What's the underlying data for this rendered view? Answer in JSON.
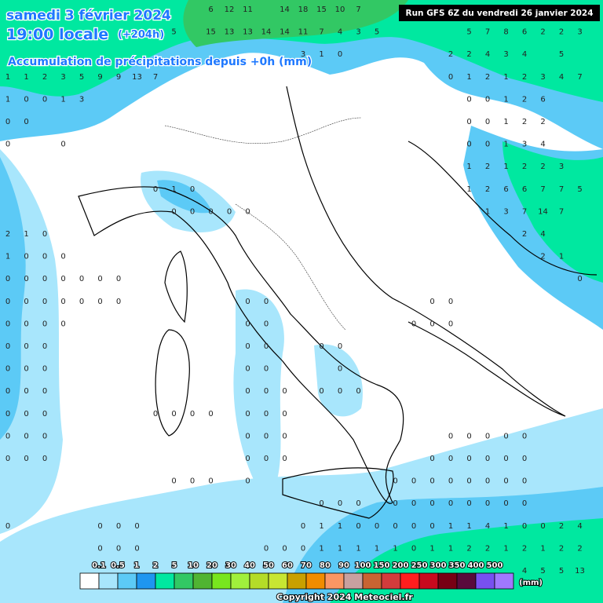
{
  "header": {
    "date": "samedi 3 février 2024",
    "time": "19:00 locale",
    "lead": "(+204h)",
    "subtitle": "Accumulation de précipitations depuis +0h (mm)",
    "run": "Run GFS 6Z du vendredi 26 janvier 2024"
  },
  "grid_rows": [
    [
      null,
      null,
      null,
      null,
      null,
      null,
      null,
      null,
      null,
      null,
      null,
      6,
      12,
      11,
      null,
      14,
      18,
      15,
      10,
      7
    ],
    [
      null,
      null,
      null,
      null,
      null,
      null,
      null,
      null,
      null,
      5,
      null,
      15,
      13,
      13,
      14,
      14,
      11,
      7,
      4,
      3,
      5,
      null,
      null,
      null,
      null,
      5,
      7,
      8,
      6,
      2,
      2,
      3
    ],
    [
      null,
      null,
      null,
      null,
      null,
      null,
      null,
      null,
      null,
      null,
      null,
      null,
      null,
      null,
      null,
      null,
      3,
      1,
      0,
      null,
      null,
      null,
      null,
      null,
      2,
      2,
      4,
      3,
      4,
      null,
      5
    ],
    [
      1,
      1,
      2,
      3,
      5,
      9,
      9,
      13,
      7,
      null,
      null,
      null,
      null,
      null,
      null,
      null,
      null,
      null,
      null,
      null,
      null,
      null,
      null,
      null,
      0,
      1,
      2,
      1,
      2,
      3,
      4,
      7
    ],
    [
      1,
      0,
      0,
      1,
      3,
      null,
      null,
      null,
      null,
      null,
      null,
      null,
      null,
      null,
      null,
      null,
      null,
      null,
      null,
      null,
      null,
      null,
      null,
      null,
      null,
      0,
      0,
      1,
      2,
      6
    ],
    [
      0,
      0,
      null,
      null,
      null,
      null,
      null,
      null,
      null,
      null,
      null,
      null,
      null,
      null,
      null,
      null,
      null,
      null,
      null,
      null,
      null,
      null,
      null,
      null,
      null,
      0,
      0,
      1,
      2,
      2
    ],
    [
      0,
      null,
      null,
      0,
      null,
      null,
      null,
      null,
      null,
      null,
      null,
      null,
      null,
      null,
      null,
      null,
      null,
      null,
      null,
      null,
      null,
      null,
      null,
      null,
      null,
      0,
      0,
      1,
      3,
      4
    ],
    [
      null,
      null,
      null,
      null,
      null,
      null,
      null,
      null,
      null,
      null,
      null,
      null,
      null,
      null,
      null,
      null,
      null,
      null,
      null,
      null,
      null,
      null,
      null,
      null,
      null,
      1,
      2,
      1,
      2,
      2,
      3
    ],
    [
      null,
      null,
      null,
      null,
      null,
      null,
      null,
      null,
      0,
      1,
      0,
      null,
      null,
      null,
      null,
      null,
      null,
      null,
      null,
      null,
      null,
      null,
      null,
      null,
      null,
      1,
      2,
      6,
      6,
      7,
      7,
      5
    ],
    [
      null,
      null,
      null,
      null,
      null,
      null,
      null,
      null,
      null,
      0,
      0,
      0,
      0,
      0,
      null,
      null,
      null,
      null,
      null,
      null,
      null,
      null,
      null,
      null,
      null,
      null,
      1,
      3,
      7,
      14,
      7
    ],
    [
      2,
      1,
      0,
      null,
      null,
      null,
      null,
      null,
      null,
      null,
      null,
      null,
      null,
      null,
      null,
      null,
      null,
      null,
      null,
      null,
      null,
      null,
      null,
      null,
      null,
      null,
      null,
      null,
      2,
      4
    ],
    [
      1,
      0,
      0,
      0,
      null,
      null,
      null,
      null,
      null,
      null,
      null,
      null,
      null,
      null,
      null,
      null,
      null,
      null,
      null,
      null,
      null,
      null,
      null,
      null,
      null,
      null,
      null,
      null,
      null,
      2,
      1
    ],
    [
      0,
      0,
      0,
      0,
      0,
      0,
      0,
      null,
      null,
      null,
      null,
      null,
      null,
      null,
      null,
      null,
      null,
      null,
      null,
      null,
      null,
      null,
      null,
      null,
      null,
      null,
      null,
      null,
      null,
      null,
      null,
      0
    ],
    [
      0,
      0,
      0,
      0,
      0,
      0,
      0,
      null,
      null,
      null,
      null,
      null,
      null,
      0,
      0,
      null,
      null,
      null,
      null,
      null,
      null,
      null,
      null,
      0,
      0
    ],
    [
      0,
      0,
      0,
      0,
      null,
      null,
      null,
      null,
      null,
      null,
      null,
      null,
      null,
      0,
      0,
      null,
      null,
      null,
      null,
      null,
      null,
      null,
      0,
      0,
      0
    ],
    [
      0,
      0,
      0,
      null,
      null,
      null,
      null,
      null,
      null,
      null,
      null,
      null,
      null,
      0,
      0,
      null,
      null,
      0,
      0
    ],
    [
      0,
      0,
      0,
      null,
      null,
      null,
      null,
      null,
      null,
      null,
      null,
      null,
      null,
      0,
      0,
      null,
      null,
      null,
      0
    ],
    [
      0,
      0,
      0,
      null,
      null,
      null,
      null,
      null,
      null,
      null,
      null,
      null,
      null,
      0,
      0,
      0,
      null,
      0,
      0,
      0
    ],
    [
      0,
      0,
      0,
      null,
      null,
      null,
      null,
      null,
      0,
      0,
      0,
      0,
      null,
      0,
      0,
      0
    ],
    [
      0,
      0,
      0,
      null,
      null,
      null,
      null,
      null,
      null,
      null,
      null,
      null,
      null,
      0,
      0,
      0,
      null,
      null,
      null,
      null,
      null,
      null,
      null,
      null,
      0,
      0,
      0,
      0,
      0
    ],
    [
      0,
      0,
      0,
      null,
      null,
      null,
      null,
      null,
      null,
      null,
      null,
      null,
      null,
      0,
      0,
      0,
      null,
      null,
      null,
      null,
      null,
      null,
      null,
      0,
      0,
      0,
      0,
      0,
      0
    ],
    [
      null,
      null,
      null,
      null,
      null,
      null,
      null,
      null,
      null,
      0,
      0,
      0,
      null,
      0,
      null,
      null,
      null,
      null,
      null,
      null,
      null,
      0,
      0,
      0,
      0,
      0,
      0,
      0,
      0
    ],
    [
      null,
      null,
      null,
      null,
      null,
      null,
      null,
      null,
      null,
      null,
      null,
      null,
      null,
      null,
      null,
      null,
      null,
      0,
      0,
      0,
      null,
      0,
      0,
      0,
      0,
      0,
      0,
      0,
      0
    ],
    [
      0,
      null,
      null,
      null,
      null,
      0,
      0,
      0,
      null,
      null,
      null,
      null,
      null,
      null,
      null,
      null,
      0,
      1,
      1,
      0,
      0,
      0,
      0,
      0,
      1,
      1,
      4,
      1,
      0,
      0,
      2,
      4
    ],
    [
      null,
      null,
      null,
      null,
      null,
      0,
      0,
      0,
      null,
      null,
      null,
      null,
      null,
      null,
      0,
      0,
      0,
      1,
      1,
      1,
      1,
      1,
      0,
      1,
      1,
      2,
      2,
      1,
      2,
      1,
      2,
      2
    ],
    [
      null,
      null,
      null,
      null,
      null,
      null,
      null,
      null,
      null,
      null,
      null,
      null,
      null,
      null,
      null,
      null,
      null,
      null,
      null,
      null,
      null,
      null,
      null,
      null,
      null,
      null,
      null,
      null,
      4,
      5,
      5,
      13
    ]
  ],
  "legend": {
    "labels": [
      "0.1",
      "0.5",
      "1",
      "2",
      "5",
      "10",
      "20",
      "30",
      "40",
      "50",
      "60",
      "70",
      "80",
      "90",
      "100",
      "150",
      "200",
      "250",
      "300",
      "350",
      "400",
      "500"
    ],
    "colors": [
      "#ffffff",
      "#a8e6fc",
      "#5ccaf6",
      "#1e96f0",
      "#00e8a0",
      "#32c864",
      "#50b432",
      "#78e61e",
      "#a0f03c",
      "#b4dc28",
      "#c8e632",
      "#c8a000",
      "#f08c00",
      "#fa9664",
      "#c8a0a0",
      "#c86432",
      "#d23c3c",
      "#ff1e1e",
      "#c80a1e",
      "#780014",
      "#5a0a3c",
      "#7850f0",
      "#a078ff"
    ],
    "unit": "(mm)"
  },
  "footer": {
    "copyright": "Copyright 2024 Meteociel.fr"
  }
}
